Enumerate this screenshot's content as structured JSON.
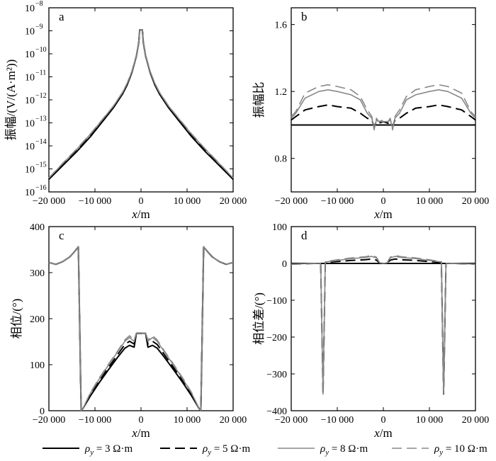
{
  "legend": {
    "entries": [
      {
        "symbol": "ρ",
        "sub": "y",
        "text": " = 3 Ω·m",
        "color": "#000000",
        "dash": "",
        "width": 2
      },
      {
        "symbol": "ρ",
        "sub": "y",
        "text": " = 5 Ω·m",
        "color": "#000000",
        "dash": "14 7",
        "width": 2
      },
      {
        "symbol": "ρ",
        "sub": "y",
        "text": " = 8 Ω·m",
        "color": "#888888",
        "dash": "",
        "width": 1.6
      },
      {
        "symbol": "ρ",
        "sub": "y",
        "text": " = 10 Ω·m",
        "color": "#888888",
        "dash": "14 7",
        "width": 1.6
      }
    ]
  },
  "chart_data": [
    {
      "id": "a",
      "panel_label": "a",
      "type": "line",
      "xlabel": "x/m",
      "ylabel": "振幅/(V/(A·m²))",
      "yscale": "log",
      "xlim": [
        -20000,
        20000
      ],
      "ylim": [
        1e-16,
        1e-08
      ],
      "xticks": [
        -20000,
        -10000,
        0,
        10000,
        20000
      ],
      "xtick_labels": [
        "−20 000",
        "−10 000",
        "0",
        "10 000",
        "20 000"
      ],
      "ytick_exponents": [
        -16,
        -15,
        -14,
        -13,
        -12,
        -11,
        -10,
        -9,
        -8
      ],
      "ytick_base": "10",
      "x": [
        -20000,
        -17000,
        -14000,
        -11000,
        -8000,
        -6000,
        -4000,
        -3000,
        -2000,
        -1500,
        -1000,
        -500,
        -300,
        300,
        500,
        1000,
        1500,
        2000,
        3000,
        4000,
        6000,
        8000,
        11000,
        14000,
        17000,
        20000
      ],
      "series": [
        {
          "name": "ρy = 3 Ω·m",
          "values": [
            3.5e-16,
            1.4e-15,
            5.5e-15,
            2.5e-14,
            1.4e-13,
            4.5e-13,
            1.8e-12,
            4.5e-12,
            1.5e-11,
            3.5e-11,
            8e-11,
            3e-10,
            1.1e-09,
            1.1e-09,
            3e-10,
            8e-11,
            3.5e-11,
            1.5e-11,
            4.5e-12,
            1.8e-12,
            4.5e-13,
            1.4e-13,
            2.5e-14,
            5.5e-15,
            1.4e-15,
            3.5e-16
          ]
        },
        {
          "name": "ρy = 5 Ω·m",
          "values": [
            3.8e-16,
            1.6e-15,
            6.5e-15,
            3e-14,
            1.6e-13,
            5e-13,
            2e-12,
            5e-12,
            1.6e-11,
            3.6e-11,
            8.2e-11,
            3e-10,
            1.1e-09,
            1.1e-09,
            3e-10,
            8.2e-11,
            3.6e-11,
            1.6e-11,
            5e-12,
            2e-12,
            5e-13,
            1.6e-13,
            3e-14,
            6.5e-15,
            1.6e-15,
            3.8e-16
          ]
        },
        {
          "name": "ρy = 8 Ω·m",
          "values": [
            4e-16,
            1.7e-15,
            7e-15,
            3.2e-14,
            1.7e-13,
            5.3e-13,
            2.1e-12,
            5.2e-12,
            1.65e-11,
            3.7e-11,
            8.3e-11,
            3e-10,
            1.1e-09,
            1.1e-09,
            3e-10,
            8.3e-11,
            3.7e-11,
            1.65e-11,
            5.2e-12,
            2.1e-12,
            5.3e-13,
            1.7e-13,
            3.2e-14,
            7e-15,
            1.7e-15,
            4e-16
          ]
        },
        {
          "name": "ρy = 10 Ω·m",
          "values": [
            4.1e-16,
            1.75e-15,
            7.2e-15,
            3.3e-14,
            1.75e-13,
            5.4e-13,
            2.15e-12,
            5.3e-12,
            1.68e-11,
            3.75e-11,
            8.4e-11,
            3e-10,
            1.1e-09,
            1.1e-09,
            3e-10,
            8.4e-11,
            3.75e-11,
            1.68e-11,
            5.3e-12,
            2.15e-12,
            5.4e-13,
            1.75e-13,
            3.3e-14,
            7.2e-15,
            1.75e-15,
            4.1e-16
          ]
        }
      ]
    },
    {
      "id": "b",
      "panel_label": "b",
      "type": "line",
      "xlabel": "x/m",
      "ylabel": "振幅比",
      "yscale": "linear",
      "xlim": [
        -20000,
        20000
      ],
      "ylim": [
        0.6,
        1.7
      ],
      "xticks": [
        -20000,
        -10000,
        0,
        10000,
        20000
      ],
      "xtick_labels": [
        "−20 000",
        "−10 000",
        "0",
        "10 000",
        "20 000"
      ],
      "yticks": [
        0.8,
        1.2,
        1.6
      ],
      "ytick_labels": [
        "0.8",
        "1.2",
        "1.6"
      ],
      "x": [
        -20000,
        -19000,
        -17000,
        -14000,
        -12000,
        -10000,
        -7000,
        -5000,
        -3500,
        -2500,
        -2000,
        -1500,
        -1000,
        0,
        1000,
        1500,
        2000,
        2500,
        3500,
        5000,
        7000,
        10000,
        12000,
        14000,
        17000,
        19000,
        20000
      ],
      "series": [
        {
          "name": "ρy = 3 Ω·m",
          "values": [
            1.0,
            1.0,
            1.0,
            1.0,
            1.0,
            1.0,
            1.0,
            1.0,
            1.0,
            1.0,
            1.0,
            1.0,
            1.0,
            1.0,
            1.0,
            1.0,
            1.0,
            1.0,
            1.0,
            1.0,
            1.0,
            1.0,
            1.0,
            1.0,
            1.0,
            1.0,
            1.0
          ]
        },
        {
          "name": "ρy = 5 Ω·m",
          "values": [
            1.03,
            1.05,
            1.09,
            1.11,
            1.12,
            1.11,
            1.1,
            1.07,
            1.04,
            1.03,
            0.99,
            1.02,
            1.01,
            1.02,
            1.01,
            1.02,
            0.99,
            1.03,
            1.04,
            1.07,
            1.1,
            1.11,
            1.12,
            1.11,
            1.09,
            1.05,
            1.03
          ]
        },
        {
          "name": "ρy = 8 Ω·m",
          "values": [
            1.04,
            1.07,
            1.16,
            1.2,
            1.21,
            1.2,
            1.18,
            1.15,
            1.07,
            1.04,
            0.98,
            1.03,
            1.02,
            1.02,
            1.02,
            1.03,
            0.98,
            1.04,
            1.07,
            1.15,
            1.18,
            1.2,
            1.21,
            1.2,
            1.16,
            1.07,
            1.04
          ]
        },
        {
          "name": "ρy = 10 Ω·m",
          "values": [
            1.05,
            1.08,
            1.19,
            1.23,
            1.24,
            1.23,
            1.21,
            1.17,
            1.09,
            1.05,
            0.97,
            1.04,
            1.02,
            1.03,
            1.02,
            1.04,
            0.97,
            1.05,
            1.09,
            1.17,
            1.21,
            1.23,
            1.24,
            1.23,
            1.19,
            1.08,
            1.05
          ]
        }
      ]
    },
    {
      "id": "c",
      "panel_label": "c",
      "type": "line",
      "xlabel": "x/m",
      "ylabel": "相位/(°)",
      "yscale": "linear",
      "xlim": [
        -20000,
        20000
      ],
      "ylim": [
        0,
        400
      ],
      "xticks": [
        -20000,
        -10000,
        0,
        10000,
        20000
      ],
      "xtick_labels": [
        "−20 000",
        "−10 000",
        "0",
        "10 000",
        "20 000"
      ],
      "yticks": [
        0,
        100,
        200,
        300,
        400
      ],
      "ytick_labels": [
        "0",
        "100",
        "200",
        "300",
        "400"
      ],
      "x": [
        -20000,
        -18500,
        -17000,
        -15500,
        -14500,
        -13600,
        -13000,
        -12600,
        -11000,
        -9000,
        -7000,
        -5000,
        -3500,
        -2500,
        -1500,
        -1000,
        0,
        1000,
        1500,
        2500,
        3500,
        5000,
        7000,
        9000,
        11000,
        12600,
        13000,
        13600,
        14500,
        15500,
        17000,
        18500,
        20000
      ],
      "series": [
        {
          "name": "ρy = 3 Ω·m",
          "values": [
            322,
            318,
            324,
            334,
            345,
            356,
            0,
            5,
            32,
            62,
            90,
            117,
            136,
            142,
            138,
            168,
            168,
            168,
            138,
            142,
            136,
            117,
            90,
            62,
            32,
            5,
            0,
            356,
            345,
            334,
            324,
            318,
            322
          ]
        },
        {
          "name": "ρy = 5 Ω·m",
          "values": [
            322,
            318,
            324,
            334,
            345,
            356,
            0,
            5,
            35,
            66,
            95,
            123,
            144,
            151,
            145,
            168,
            168,
            168,
            145,
            151,
            144,
            123,
            95,
            66,
            35,
            5,
            0,
            356,
            345,
            334,
            324,
            318,
            322
          ]
        },
        {
          "name": "ρy = 8 Ω·m",
          "values": [
            322,
            318,
            324,
            334,
            345,
            356,
            0,
            5,
            38,
            70,
            100,
            129,
            151,
            159,
            151,
            168,
            168,
            168,
            151,
            159,
            151,
            129,
            100,
            70,
            38,
            5,
            0,
            356,
            345,
            334,
            324,
            318,
            322
          ]
        },
        {
          "name": "ρy = 10 Ω·m",
          "values": [
            322,
            318,
            324,
            334,
            345,
            356,
            0,
            5,
            39,
            72,
            102,
            131,
            154,
            163,
            154,
            169,
            169,
            169,
            154,
            163,
            154,
            131,
            102,
            72,
            39,
            5,
            0,
            356,
            345,
            334,
            324,
            318,
            322
          ]
        }
      ]
    },
    {
      "id": "d",
      "panel_label": "d",
      "type": "line",
      "xlabel": "x/m",
      "ylabel": "相位差/(°)",
      "yscale": "linear",
      "xlim": [
        -20000,
        20000
      ],
      "ylim": [
        -400,
        100
      ],
      "xticks": [
        -20000,
        -10000,
        0,
        10000,
        20000
      ],
      "xtick_labels": [
        "−20 000",
        "−10 000",
        "0",
        "10 000",
        "20 000"
      ],
      "yticks": [
        -400,
        -300,
        -200,
        -100,
        0,
        100
      ],
      "ytick_labels": [
        "−400",
        "−300",
        "−200",
        "−100",
        "0",
        "100"
      ],
      "x": [
        -20000,
        -15000,
        -13600,
        -13100,
        -12600,
        -10000,
        -7000,
        -4000,
        -2500,
        -1500,
        -800,
        0,
        800,
        1500,
        2500,
        4000,
        7000,
        10000,
        12600,
        13100,
        13600,
        15000,
        20000
      ],
      "series": [
        {
          "name": "ρy = 3 Ω·m",
          "values": [
            0,
            0,
            0,
            0,
            0,
            0,
            0,
            0,
            0,
            0,
            0,
            0,
            0,
            0,
            0,
            0,
            0,
            0,
            0,
            0,
            0,
            0,
            0
          ]
        },
        {
          "name": "ρy = 5 Ω·m",
          "values": [
            -2,
            0,
            0,
            -355,
            3,
            5,
            8,
            10,
            12,
            9,
            1,
            0,
            1,
            9,
            12,
            10,
            8,
            5,
            3,
            -355,
            0,
            0,
            -2
          ]
        },
        {
          "name": "ρy = 8 Ω·m",
          "values": [
            -2,
            0,
            0,
            -355,
            4,
            8,
            13,
            16,
            19,
            15,
            2,
            0,
            2,
            15,
            19,
            16,
            13,
            8,
            4,
            -355,
            0,
            0,
            -2
          ]
        },
        {
          "name": "ρy = 10 Ω·m",
          "values": [
            -2,
            0,
            0,
            -355,
            5,
            10,
            15,
            18,
            22,
            17,
            2,
            0,
            2,
            17,
            22,
            18,
            15,
            10,
            5,
            -355,
            0,
            0,
            -2
          ]
        }
      ]
    }
  ]
}
